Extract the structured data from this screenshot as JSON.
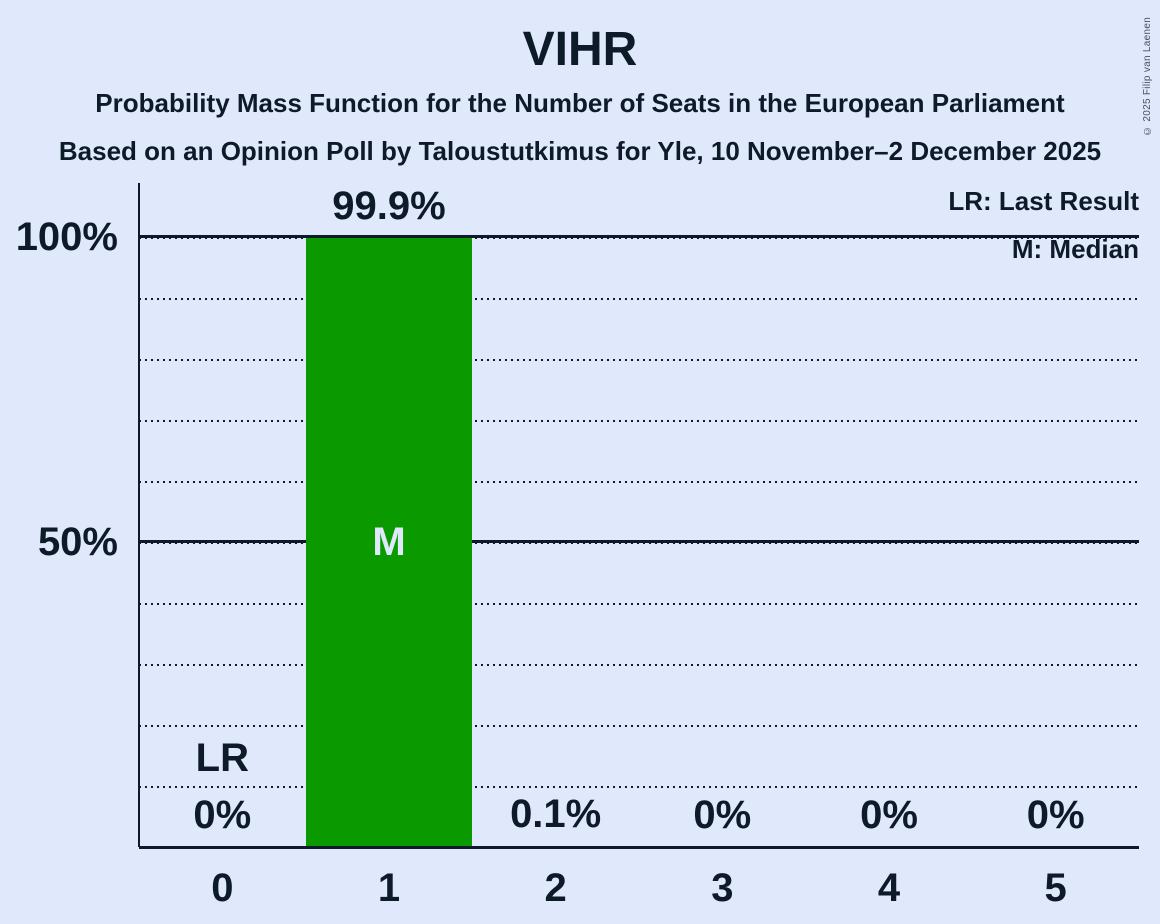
{
  "page": {
    "background_color": "#dfe9fb",
    "ink_color": "#0d1b29"
  },
  "header": {
    "title": "VIHR",
    "subtitle1": "Probability Mass Function for the Number of Seats in the European Parliament",
    "subtitle2": "Based on an Opinion Poll by Taloustutkimus for Yle, 10 November–2 December 2025"
  },
  "legend": {
    "lr": "LR: Last Result",
    "m": "M: Median"
  },
  "copyright": "© 2025 Filip van Laenen",
  "chart_data": {
    "type": "bar",
    "title": "VIHR",
    "xlabel": "Number of seats",
    "ylabel": "Probability",
    "categories": [
      "0",
      "1",
      "2",
      "3",
      "4",
      "5"
    ],
    "values": [
      0,
      99.9,
      0.1,
      0,
      0,
      0
    ],
    "value_labels": [
      "0%",
      "99.9%",
      "0.1%",
      "0%",
      "0%",
      "0%"
    ],
    "ylim": [
      0,
      100
    ],
    "yticks": [
      {
        "label": "100%",
        "value": 100
      },
      {
        "label": "50%",
        "value": 50
      }
    ],
    "dotted_gridlines_pct": [
      10,
      20,
      30,
      40,
      50,
      60,
      70,
      80,
      90,
      100
    ],
    "solid_gridlines_pct": [
      50,
      100
    ],
    "grid": true,
    "legend_position": "top-right",
    "bar_color": "#0a9a00",
    "median_label_color": "#dfe9fb",
    "annotations": [
      {
        "category_index": 0,
        "text": "LR",
        "meaning": "Last Result",
        "placement": "above-value-label"
      },
      {
        "category_index": 1,
        "text": "M",
        "meaning": "Median",
        "placement": "bar-center"
      }
    ]
  }
}
